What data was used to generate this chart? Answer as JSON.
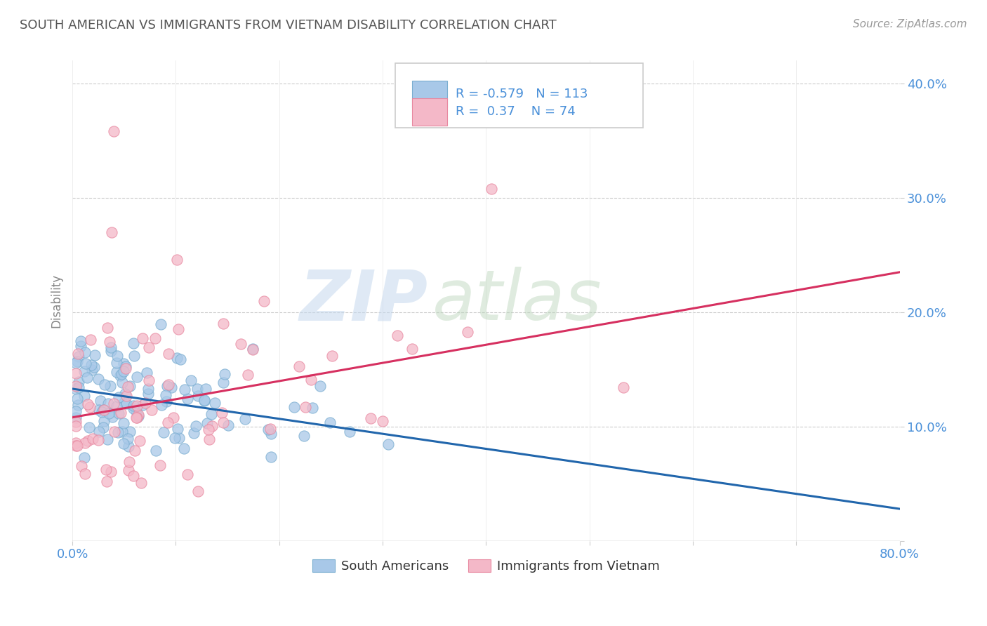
{
  "title": "SOUTH AMERICAN VS IMMIGRANTS FROM VIETNAM DISABILITY CORRELATION CHART",
  "source_text": "Source: ZipAtlas.com",
  "ylabel": "Disability",
  "xlim": [
    0.0,
    0.8
  ],
  "ylim": [
    0.0,
    0.42
  ],
  "xticks": [
    0.0,
    0.1,
    0.2,
    0.3,
    0.4,
    0.5,
    0.6,
    0.7,
    0.8
  ],
  "yticks": [
    0.0,
    0.1,
    0.2,
    0.3,
    0.4
  ],
  "blue_color": "#a8c8e8",
  "blue_edge_color": "#7aaed0",
  "pink_color": "#f4b8c8",
  "pink_edge_color": "#e888a0",
  "blue_line_color": "#2166ac",
  "pink_line_color": "#d63060",
  "R_blue": -0.579,
  "N_blue": 113,
  "R_pink": 0.37,
  "N_pink": 74,
  "legend_label_blue": "South Americans",
  "legend_label_pink": "Immigrants from Vietnam",
  "watermark_zip": "ZIP",
  "watermark_atlas": "atlas",
  "background_color": "#ffffff",
  "grid_color": "#cccccc",
  "title_color": "#555555",
  "tick_color": "#4a90d9",
  "stat_color": "#4a90d9",
  "blue_regress_y0": 0.133,
  "blue_regress_y1": 0.028,
  "pink_regress_y0": 0.108,
  "pink_regress_y1": 0.235
}
